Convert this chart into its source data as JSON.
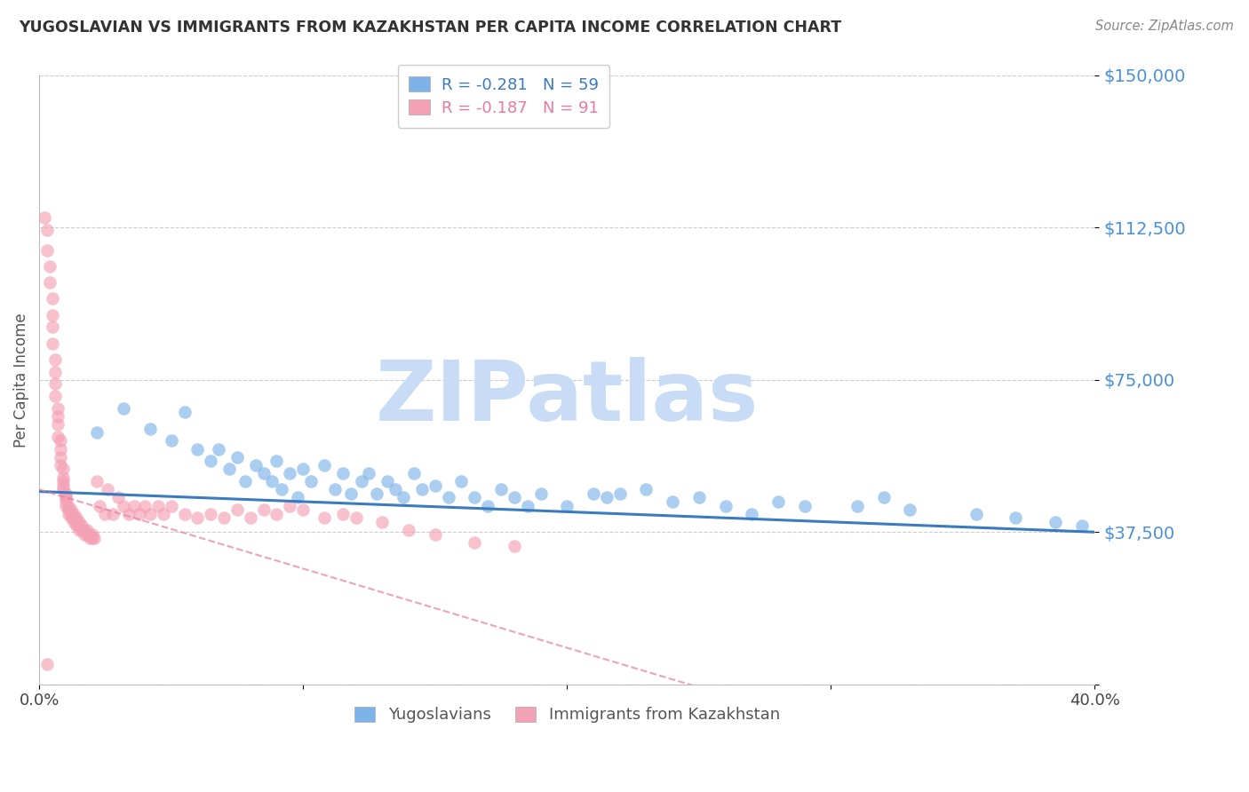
{
  "title": "YUGOSLAVIAN VS IMMIGRANTS FROM KAZAKHSTAN PER CAPITA INCOME CORRELATION CHART",
  "source": "Source: ZipAtlas.com",
  "ylabel": "Per Capita Income",
  "xlim": [
    0.0,
    0.4
  ],
  "ylim": [
    0,
    150000
  ],
  "yticks": [
    0,
    37500,
    75000,
    112500,
    150000
  ],
  "ytick_labels": [
    "",
    "$37,500",
    "$75,000",
    "$112,500",
    "$150,000"
  ],
  "xticks": [
    0.0,
    0.1,
    0.2,
    0.3,
    0.4
  ],
  "xtick_labels": [
    "0.0%",
    "",
    "",
    "",
    "40.0%"
  ],
  "legend_r1": "R = -0.281   N = 59",
  "legend_r2": "R = -0.187   N = 91",
  "blue_scatter_color": "#7db3e8",
  "pink_scatter_color": "#f4a0b5",
  "blue_line_color": "#3a7bbf",
  "pink_line_color": "#e87aa0",
  "watermark": "ZIPatlas",
  "watermark_color": "#c8ddf5",
  "source_color": "#888888",
  "title_color": "#333333",
  "ylabel_color": "#555555",
  "ytick_color": "#4a90d9",
  "grid_color": "#cccccc",
  "blue_scatter_x": [
    0.022,
    0.032,
    0.042,
    0.05,
    0.055,
    0.06,
    0.065,
    0.068,
    0.072,
    0.075,
    0.078,
    0.082,
    0.085,
    0.088,
    0.09,
    0.092,
    0.095,
    0.098,
    0.1,
    0.103,
    0.108,
    0.112,
    0.115,
    0.118,
    0.122,
    0.125,
    0.128,
    0.132,
    0.135,
    0.138,
    0.142,
    0.145,
    0.15,
    0.155,
    0.16,
    0.165,
    0.17,
    0.175,
    0.18,
    0.185,
    0.19,
    0.2,
    0.21,
    0.215,
    0.22,
    0.23,
    0.24,
    0.25,
    0.26,
    0.27,
    0.28,
    0.29,
    0.31,
    0.32,
    0.33,
    0.355,
    0.37,
    0.385,
    0.395
  ],
  "blue_scatter_y": [
    62000,
    68000,
    63000,
    60000,
    67000,
    58000,
    55000,
    58000,
    53000,
    56000,
    50000,
    54000,
    52000,
    50000,
    55000,
    48000,
    52000,
    46000,
    53000,
    50000,
    54000,
    48000,
    52000,
    47000,
    50000,
    52000,
    47000,
    50000,
    48000,
    46000,
    52000,
    48000,
    49000,
    46000,
    50000,
    46000,
    44000,
    48000,
    46000,
    44000,
    47000,
    44000,
    47000,
    46000,
    47000,
    48000,
    45000,
    46000,
    44000,
    42000,
    45000,
    44000,
    44000,
    46000,
    43000,
    42000,
    41000,
    40000,
    39000
  ],
  "pink_scatter_x": [
    0.002,
    0.003,
    0.003,
    0.004,
    0.004,
    0.005,
    0.005,
    0.005,
    0.005,
    0.006,
    0.006,
    0.006,
    0.006,
    0.007,
    0.007,
    0.007,
    0.007,
    0.008,
    0.008,
    0.008,
    0.008,
    0.009,
    0.009,
    0.009,
    0.009,
    0.009,
    0.01,
    0.01,
    0.01,
    0.01,
    0.01,
    0.011,
    0.011,
    0.011,
    0.012,
    0.012,
    0.012,
    0.013,
    0.013,
    0.013,
    0.014,
    0.014,
    0.014,
    0.015,
    0.015,
    0.015,
    0.016,
    0.016,
    0.017,
    0.017,
    0.018,
    0.018,
    0.019,
    0.019,
    0.02,
    0.02,
    0.021,
    0.022,
    0.023,
    0.025,
    0.026,
    0.028,
    0.03,
    0.032,
    0.034,
    0.036,
    0.038,
    0.04,
    0.042,
    0.045,
    0.047,
    0.05,
    0.055,
    0.06,
    0.065,
    0.07,
    0.075,
    0.08,
    0.085,
    0.09,
    0.095,
    0.1,
    0.108,
    0.115,
    0.12,
    0.13,
    0.14,
    0.15,
    0.165,
    0.18,
    0.003
  ],
  "pink_scatter_y": [
    115000,
    112000,
    107000,
    103000,
    99000,
    95000,
    91000,
    88000,
    84000,
    80000,
    77000,
    74000,
    71000,
    68000,
    66000,
    64000,
    61000,
    60000,
    58000,
    56000,
    54000,
    53000,
    51000,
    50000,
    49000,
    48000,
    47000,
    46000,
    46000,
    45000,
    44000,
    44000,
    43000,
    42000,
    43000,
    42000,
    41000,
    42000,
    41000,
    40000,
    41000,
    40000,
    39000,
    40000,
    39000,
    38000,
    39000,
    38000,
    38000,
    37000,
    38000,
    37000,
    37000,
    36000,
    37000,
    36000,
    36000,
    50000,
    44000,
    42000,
    48000,
    42000,
    46000,
    44000,
    42000,
    44000,
    42000,
    44000,
    42000,
    44000,
    42000,
    44000,
    42000,
    41000,
    42000,
    41000,
    43000,
    41000,
    43000,
    42000,
    44000,
    43000,
    41000,
    42000,
    41000,
    40000,
    38000,
    37000,
    35000,
    34000,
    5000
  ]
}
